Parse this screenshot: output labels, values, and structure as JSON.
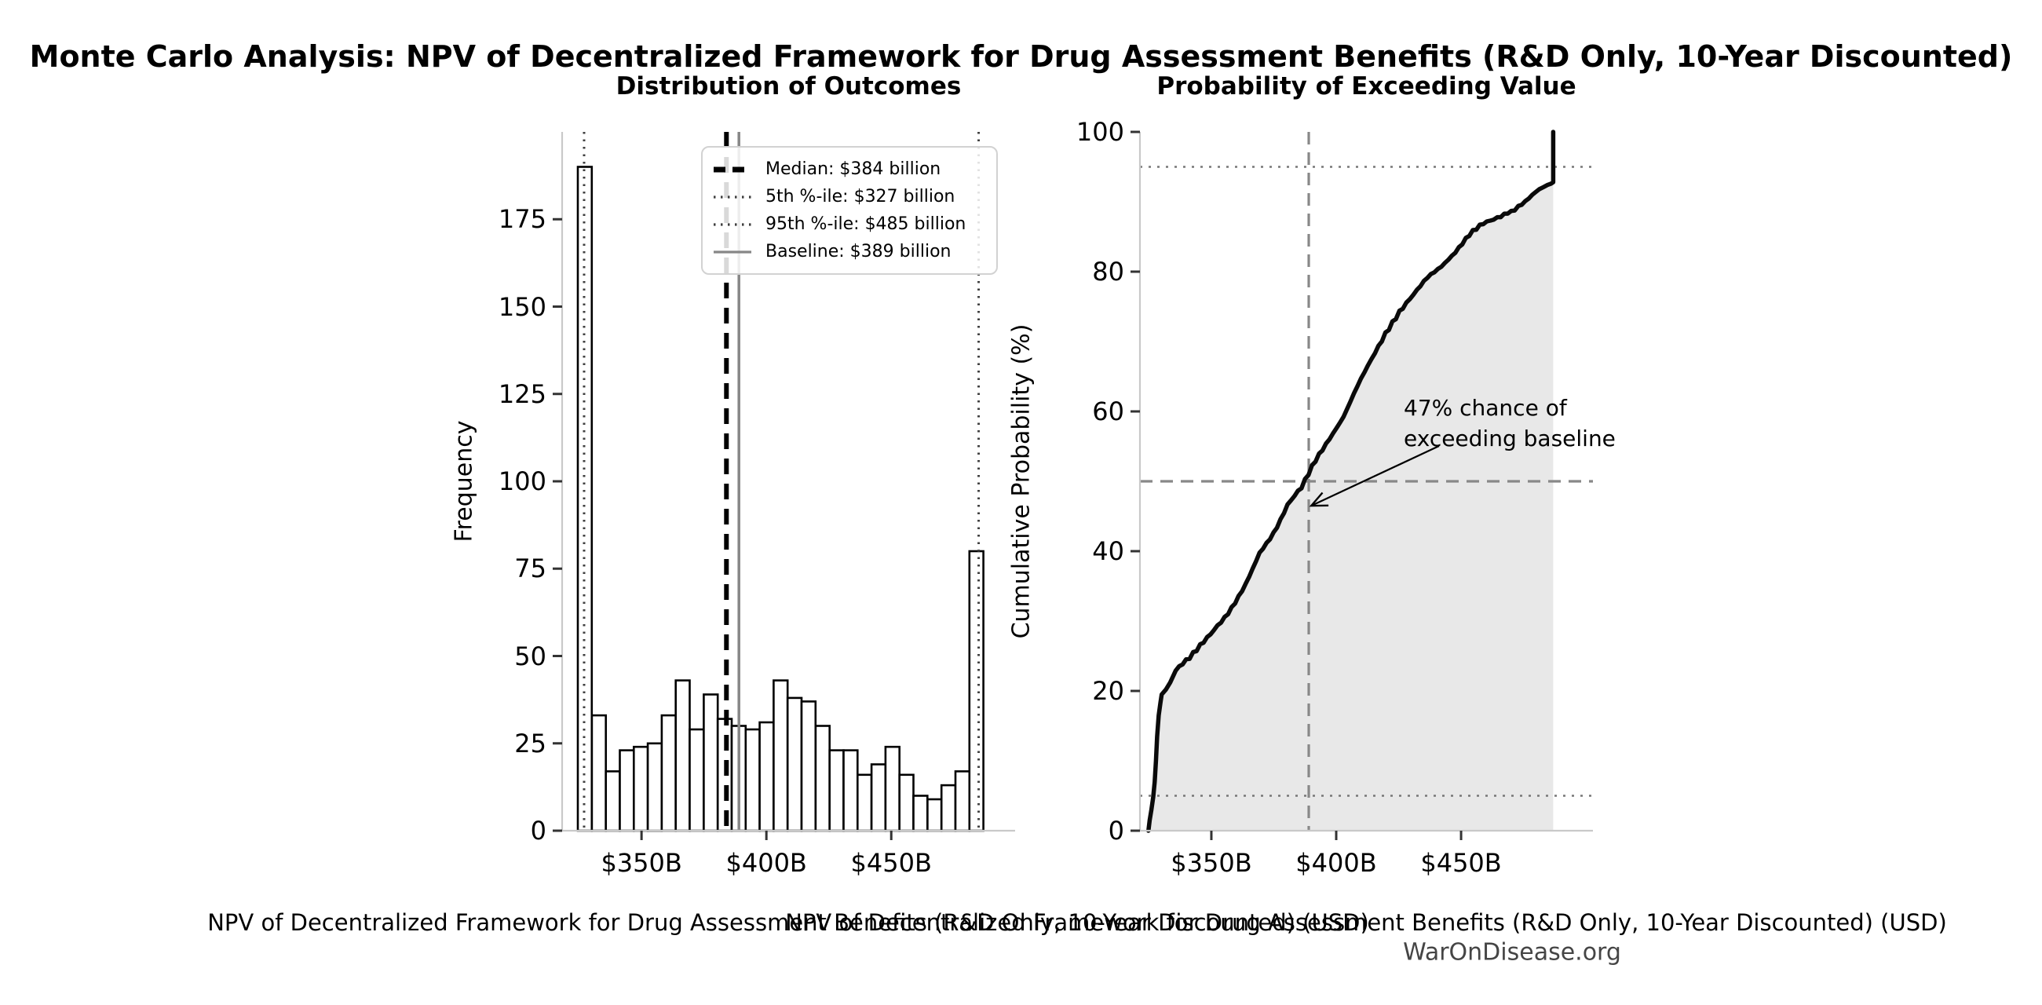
{
  "title": "Monte Carlo Analysis: NPV of Decentralized Framework for Drug Assessment Benefits (R&D Only, 10-Year Discounted)",
  "watermark": "WarOnDisease.org",
  "chart_data": [
    {
      "type": "bar",
      "subtype": "histogram",
      "title": "Distribution of Outcomes",
      "xlabel": "NPV of Decentralized Framework for Drug Assessment Benefits (R&D Only, 10-Year Discounted) (USD)",
      "ylabel": "Frequency",
      "grid": false,
      "xlim": [
        318.2,
        499.6
      ],
      "ylim": [
        0,
        200
      ],
      "x_ticks": [
        {
          "value": 350,
          "label": "$350B"
        },
        {
          "value": 400,
          "label": "$400B"
        },
        {
          "value": 450,
          "label": "$450B"
        }
      ],
      "y_ticks": [
        0,
        25,
        50,
        75,
        100,
        125,
        150,
        175
      ],
      "bars": {
        "bin_start_billion": 324.5,
        "bin_width_billion": 5.6,
        "counts": [
          190,
          33,
          17,
          23,
          24,
          25,
          33,
          43,
          29,
          39,
          32,
          30,
          29,
          31,
          43,
          38,
          37,
          30,
          23,
          23,
          16,
          19,
          24,
          16,
          10,
          9,
          13,
          17,
          80
        ],
        "bar_fill": "#ffffff",
        "bar_edge": "#000000"
      },
      "legend_position": "upper right",
      "ref_lines": [
        {
          "id": "median",
          "value": 384,
          "label": "Median: $384 billion",
          "style": "dashed",
          "color": "#000000",
          "weight": "thick"
        },
        {
          "id": "p5",
          "value": 327,
          "label": "5th %-ile: $327 billion",
          "style": "dotted",
          "color": "#3f3f3f",
          "weight": "normal"
        },
        {
          "id": "p95",
          "value": 485,
          "label": "95th %-ile: $485 billion",
          "style": "dotted",
          "color": "#3f3f3f",
          "weight": "normal"
        },
        {
          "id": "baseline",
          "value": 389,
          "label": "Baseline: $389 billion",
          "style": "solid",
          "color": "#878787",
          "weight": "normal"
        }
      ]
    },
    {
      "type": "line",
      "subtype": "cdf",
      "title": "Probability of Exceeding Value",
      "xlabel": "NPV of Decentralized Framework for Drug Assessment Benefits (R&D Only, 10-Year Discounted) (USD)",
      "ylabel": "Cumulative Probability (%)",
      "grid": false,
      "xlim": [
        321.4,
        502.8
      ],
      "ylim": [
        0,
        100
      ],
      "x_ticks": [
        {
          "value": 350,
          "label": "$350B"
        },
        {
          "value": 400,
          "label": "$400B"
        },
        {
          "value": 450,
          "label": "$450B"
        }
      ],
      "y_ticks": [
        0,
        20,
        40,
        60,
        80,
        100
      ],
      "curve": {
        "color": "#0a0a0a",
        "fill_color": "#e8e8e8",
        "x": [
          324.8,
          325.3,
          326.0,
          326.7,
          327.3,
          327.8,
          328.3,
          328.9,
          329.6,
          330.1,
          331.8,
          333.5,
          335.7,
          338.5,
          341.3,
          344.1,
          346.9,
          349.7,
          352.5,
          355.3,
          358.1,
          360.9,
          363.7,
          366.5,
          369.3,
          372.1,
          374.9,
          377.7,
          380.5,
          383.3,
          386.1,
          388.9,
          391.7,
          394.5,
          397.3,
          400.1,
          402.9,
          405.7,
          408.5,
          411.3,
          414.1,
          416.9,
          419.7,
          422.5,
          425.3,
          428.1,
          430.9,
          433.7,
          436.5,
          439.3,
          442.1,
          444.9,
          447.7,
          450.5,
          453.3,
          456.1,
          458.9,
          461.7,
          464.5,
          467.3,
          470.1,
          472.9,
          475.7,
          478.5,
          481.3,
          483.0,
          484.6,
          486.0,
          486.9,
          486.9
        ],
        "y": [
          0,
          1.5,
          3.0,
          4.8,
          7.0,
          10.0,
          13.5,
          16.5,
          18.3,
          19.5,
          20.2,
          21.2,
          22.9,
          23.8,
          24.6,
          25.7,
          26.9,
          28.1,
          29.4,
          30.6,
          32.0,
          33.6,
          35.3,
          37.5,
          39.8,
          41.2,
          42.7,
          44.6,
          46.7,
          47.9,
          49.0,
          50.9,
          52.8,
          54.4,
          56.0,
          57.6,
          59.2,
          61.4,
          63.6,
          65.6,
          67.5,
          69.4,
          71.3,
          72.9,
          74.4,
          75.6,
          76.7,
          77.9,
          79.1,
          79.9,
          80.7,
          81.7,
          82.7,
          83.9,
          85.1,
          86.0,
          86.8,
          87.3,
          87.8,
          88.3,
          88.7,
          89.4,
          90.1,
          91.0,
          91.8,
          92.1,
          92.4,
          92.6,
          92.8,
          100
        ]
      },
      "ref_lines": [
        {
          "id": "p5-h",
          "axis": "y",
          "value": 5,
          "style": "dotted",
          "color": "#777777"
        },
        {
          "id": "p95-h",
          "axis": "y",
          "value": 95,
          "style": "dotted",
          "color": "#777777"
        },
        {
          "id": "fifty-h",
          "axis": "y",
          "value": 50,
          "style": "dashed",
          "color": "#888888"
        },
        {
          "id": "baseline-v",
          "axis": "x",
          "value": 389,
          "style": "dashed",
          "color": "#888888"
        }
      ],
      "annotation": {
        "line1": "47% chance of",
        "line2": "exceeding baseline",
        "arrow_to_x": 390,
        "arrow_to_y": 46.5
      }
    }
  ]
}
